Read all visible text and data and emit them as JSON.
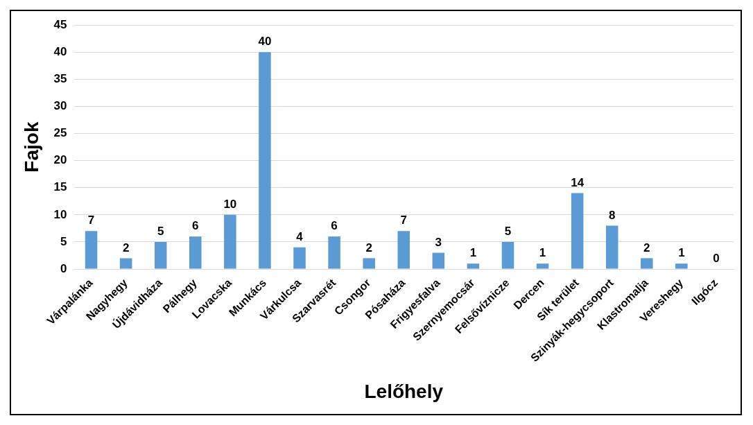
{
  "chart_data": {
    "type": "bar",
    "xlabel": "Lelőhely",
    "ylabel": "Fajok",
    "categories": [
      "Várpalánka",
      "Nagyhegy",
      "Újdávidháza",
      "Pálhegy",
      "Lovacska",
      "Munkács",
      "Várkulcsa",
      "Szarvasrét",
      "Csongor",
      "Pósaháza",
      "Frigyesfalva",
      "Szernyemocsár",
      "Felsővíznicze",
      "Dercen",
      "Sík terület",
      "Szinyák-hegycsoport",
      "Klastromalja",
      "Vereshegy",
      "Ilgócz"
    ],
    "values": [
      7,
      2,
      5,
      6,
      10,
      40,
      4,
      6,
      2,
      7,
      3,
      1,
      5,
      1,
      14,
      8,
      2,
      1,
      0
    ],
    "color": "#5b9bd5",
    "ylim": [
      0,
      45
    ],
    "yticks": [
      0,
      5,
      10,
      15,
      20,
      25,
      30,
      35,
      40,
      45
    ],
    "grid": "y",
    "data_labels": true,
    "legend": false
  }
}
